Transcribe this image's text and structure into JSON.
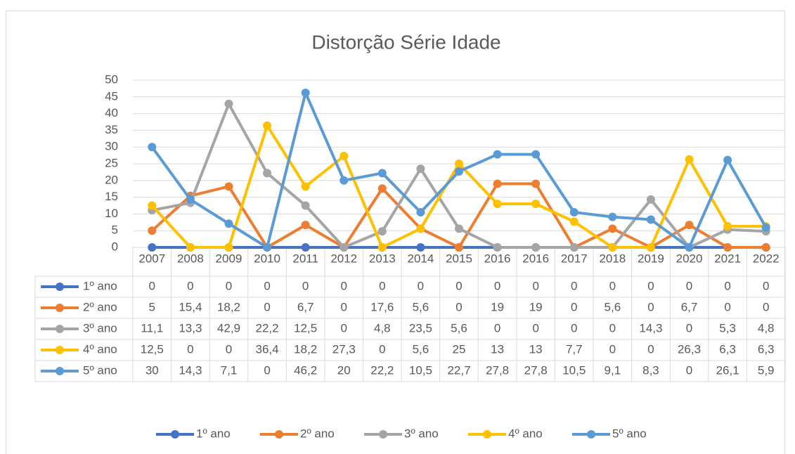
{
  "chart_data": {
    "type": "line",
    "title": "Distorção Série Idade",
    "categories": [
      "2007",
      "2008",
      "2009",
      "2010",
      "2011",
      "2012",
      "2013",
      "2014",
      "2015",
      "2016",
      "2016",
      "2017",
      "2018",
      "2019",
      "2020",
      "2021",
      "2022"
    ],
    "ylim": [
      0,
      50
    ],
    "yticks": [
      0,
      5,
      10,
      15,
      20,
      25,
      30,
      35,
      40,
      45,
      50
    ],
    "grid": true,
    "legend": "bottom",
    "data_table": true,
    "series": [
      {
        "name": "1º ano",
        "color": "#4472c4",
        "values": [
          0,
          0,
          0,
          0,
          0,
          0,
          0,
          0,
          0,
          0,
          0,
          0,
          0,
          0,
          0,
          0,
          0
        ]
      },
      {
        "name": "2º ano",
        "color": "#ed7d31",
        "values": [
          5,
          15.4,
          18.2,
          0,
          6.7,
          0,
          17.6,
          5.6,
          0,
          19,
          19,
          0,
          5.6,
          0,
          6.7,
          0,
          0
        ],
        "value_labels": [
          "5",
          "15,4",
          "18,2",
          "0",
          "6,7",
          "0",
          "17,6",
          "5,6",
          "0",
          "19",
          "19",
          "0",
          "5,6",
          "0",
          "6,7",
          "0",
          "0"
        ]
      },
      {
        "name": "3º ano",
        "color": "#a5a5a5",
        "values": [
          11.1,
          13.3,
          42.9,
          22.2,
          12.5,
          0,
          4.8,
          23.5,
          5.6,
          0,
          0,
          0,
          0,
          14.3,
          0,
          5.3,
          4.8
        ],
        "value_labels": [
          "11,1",
          "13,3",
          "42,9",
          "22,2",
          "12,5",
          "0",
          "4,8",
          "23,5",
          "5,6",
          "0",
          "0",
          "0",
          "0",
          "14,3",
          "0",
          "5,3",
          "4,8"
        ]
      },
      {
        "name": "4º ano",
        "color": "#ffc000",
        "values": [
          12.5,
          0,
          0,
          36.4,
          18.2,
          27.3,
          0,
          5.6,
          25,
          13,
          13,
          7.7,
          0,
          0,
          26.3,
          6.3,
          6.3
        ],
        "value_labels": [
          "12,5",
          "0",
          "0",
          "36,4",
          "18,2",
          "27,3",
          "0",
          "5,6",
          "25",
          "13",
          "13",
          "7,7",
          "0",
          "0",
          "26,3",
          "6,3",
          "6,3"
        ]
      },
      {
        "name": "5º ano",
        "color": "#5b9bd5",
        "values": [
          30,
          14.3,
          7.1,
          0,
          46.2,
          20,
          22.2,
          10.5,
          22.7,
          27.8,
          27.8,
          10.5,
          9.1,
          8.3,
          0,
          26.1,
          5.9
        ],
        "value_labels": [
          "30",
          "14,3",
          "7,1",
          "0",
          "46,2",
          "20",
          "22,2",
          "10,5",
          "22,7",
          "27,8",
          "27,8",
          "10,5",
          "9,1",
          "8,3",
          "0",
          "26,1",
          "5,9"
        ]
      }
    ]
  }
}
